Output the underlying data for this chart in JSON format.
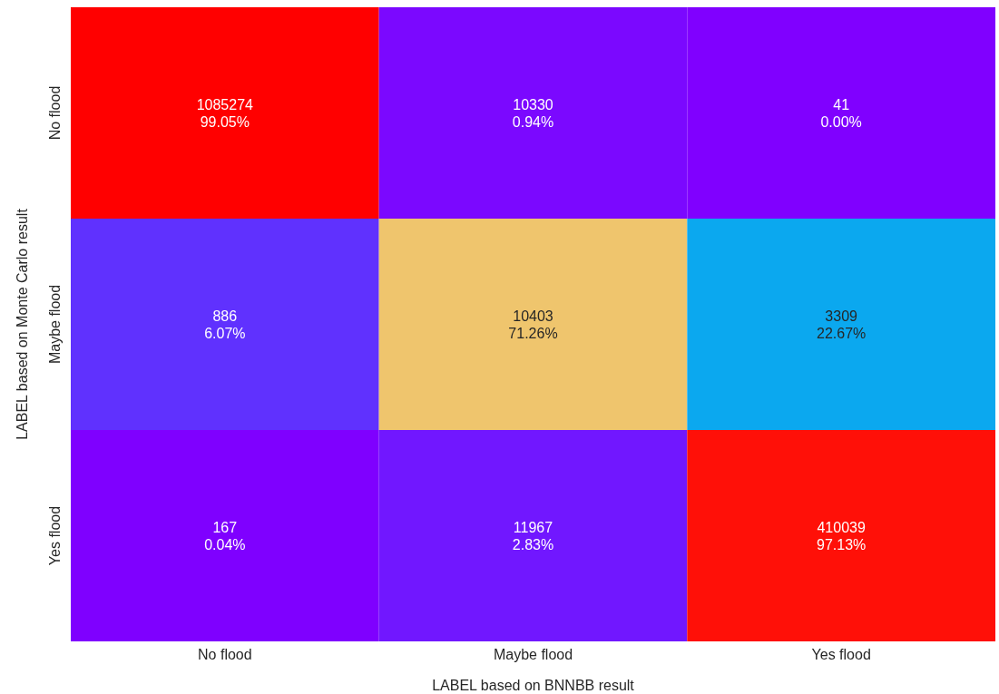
{
  "chart_data": {
    "type": "heatmap",
    "xlabel": "LABEL based on BNNBB result",
    "ylabel": "LABEL based on Monte Carlo result",
    "categories": [
      "No flood",
      "Maybe flood",
      "Yes flood"
    ],
    "y_categories": [
      "No flood",
      "Maybe flood",
      "Yes flood"
    ],
    "cells": [
      [
        99.05,
        0.94,
        0.0
      ],
      [
        6.07,
        71.26,
        22.67
      ],
      [
        0.04,
        2.83,
        97.13
      ]
    ],
    "cell_labels": [
      [
        "99.05%",
        "0.94%",
        "0.00%"
      ],
      [
        "6.07%",
        "71.26%",
        "22.67%"
      ],
      [
        "0.04%",
        "2.83%",
        "97.13%"
      ]
    ],
    "annotations": [
      "1085274",
      "10330",
      "41",
      "886",
      "10403",
      "3309",
      "167",
      "11967",
      "410039"
    ]
  }
}
